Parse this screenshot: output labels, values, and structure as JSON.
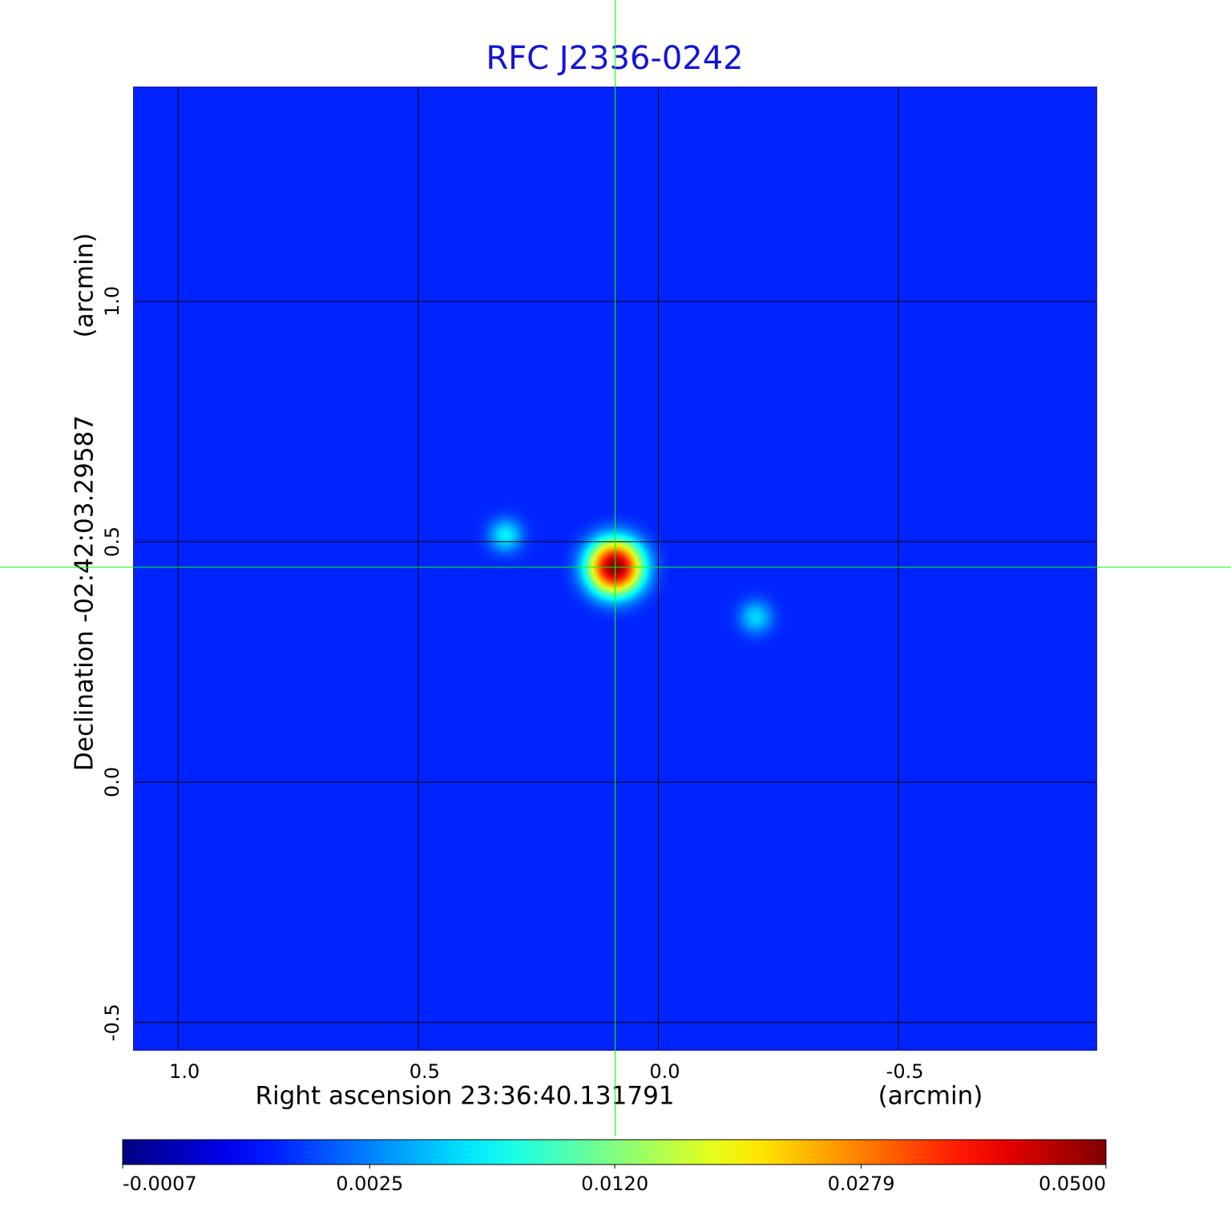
{
  "chart_data": {
    "type": "image",
    "title": "RFC J2336-0242",
    "x_label": "Right ascension  23:36:40.131791",
    "x_unit": "(arcmin)",
    "y_label": "Declination  -02:42:03.29587",
    "y_unit": "(arcmin)",
    "xlim": [
      1.092,
      -0.912
    ],
    "ylim": [
      -0.557,
      1.445
    ],
    "xticks": [
      {
        "value": 1,
        "label": "1.0"
      },
      0.5,
      {
        "value": 0,
        "label": "0.0"
      },
      -0.5
    ],
    "yticks": [
      {
        "value": 1,
        "label": "1.0"
      },
      0.5,
      {
        "value": 0,
        "label": "0.0"
      },
      -0.5
    ],
    "grid": true,
    "grid_color": "#000000",
    "colormap": "jet",
    "color_scale": "sqrt",
    "clim": [
      -0.0007,
      0.05
    ],
    "cticks": [
      -0.0007,
      0.0025,
      {
        "value": 0.012,
        "label": "0.0120"
      },
      0.0279,
      {
        "value": 0.05,
        "label": "0.0500"
      }
    ],
    "background_level": 0.0006,
    "sources": [
      {
        "x": 0.09,
        "y": 0.447,
        "value": 0.05,
        "fwhm": 0.075
      },
      {
        "x": 0.318,
        "y": 0.513,
        "value": 0.006,
        "fwhm": 0.05
      },
      {
        "x": -0.203,
        "y": 0.343,
        "value": 0.005,
        "fwhm": 0.05
      }
    ],
    "crosshair": {
      "x": 0.09,
      "y": 0.447,
      "color": "#00ff00"
    }
  }
}
